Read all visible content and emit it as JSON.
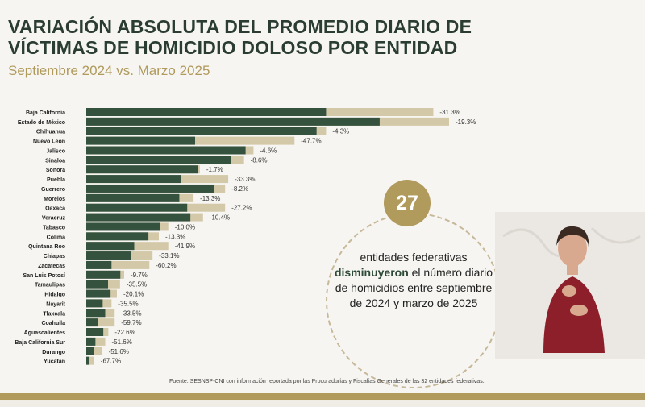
{
  "header": {
    "title": "VARIACIÓN ABSOLUTA DEL PROMEDIO DIARIO DE VÍCTIMAS DE HOMICIDIO DOLOSO POR ENTIDAD",
    "subtitle": "Septiembre 2024 vs. Marzo 2025"
  },
  "callout": {
    "number": "27",
    "text_before": "entidades federativas",
    "highlight": "disminuyeron",
    "text_after": "el número diario de homicidios entre septiembre de 2024 y marzo de 2025"
  },
  "source": "Fuente: SESNSP-CNI con información reportada por las Procuradurías y Fiscalías Generales de las 32 entidades federativas.",
  "colors": {
    "march": "#34523d",
    "september": "#d3c8a8",
    "accent": "#b09a5c",
    "title": "#2b3d32"
  },
  "chart_data": {
    "type": "bar",
    "orientation": "horizontal",
    "categories": [
      "Baja California",
      "Estado de México",
      "Chihuahua",
      "Nuevo León",
      "Jalisco",
      "Sinaloa",
      "Sonora",
      "Puebla",
      "Guerrero",
      "Morelos",
      "Oaxaca",
      "Veracruz",
      "Tabasco",
      "Colima",
      "Quintana Roo",
      "Chiapas",
      "Zacatecas",
      "San Luis Potosí",
      "Tamaulipas",
      "Hidalgo",
      "Nayarit",
      "Tlaxcala",
      "Coahuila",
      "Aguascalientes",
      "Baja California Sur",
      "Durango",
      "Yucatán"
    ],
    "series": [
      {
        "values": [
          11.0,
          11.5,
          7.6,
          6.6,
          5.3,
          5.0,
          3.6,
          4.5,
          4.4,
          3.4,
          4.4,
          3.7,
          2.6,
          2.3,
          2.6,
          2.1,
          2.0,
          1.2,
          1.07,
          0.97,
          0.8,
          0.9,
          0.9,
          0.7,
          0.6,
          0.5,
          0.25
        ]
      },
      {
        "values": [
          7.6,
          9.3,
          7.3,
          3.45,
          5.05,
          4.6,
          3.55,
          3.0,
          4.05,
          2.95,
          3.2,
          3.3,
          2.35,
          1.97,
          1.52,
          1.42,
          0.8,
          1.08,
          0.69,
          0.77,
          0.52,
          0.6,
          0.36,
          0.54,
          0.29,
          0.24,
          0.08
        ]
      }
    ],
    "labels": [
      "-31.3%",
      "-19.3%",
      "-4.3%",
      "-47.7%",
      "-4.6%",
      "-8.6%",
      "-1.7%",
      "-33.3%",
      "-8.2%",
      "-13.3%",
      "-27.2%",
      "-10.4%",
      "-10.0%",
      "-13.3%",
      "-41.9%",
      "-33.1%",
      "-60.2%",
      "-9.7%",
      "-35.5%",
      "-20.1%",
      "-35.5%",
      "-33.5%",
      "-59.7%",
      "-22.6%",
      "-51.6%",
      "-51.6%",
      "-67.7%"
    ],
    "xlim": [
      0,
      11.5
    ],
    "grid": false,
    "legend": "none"
  }
}
